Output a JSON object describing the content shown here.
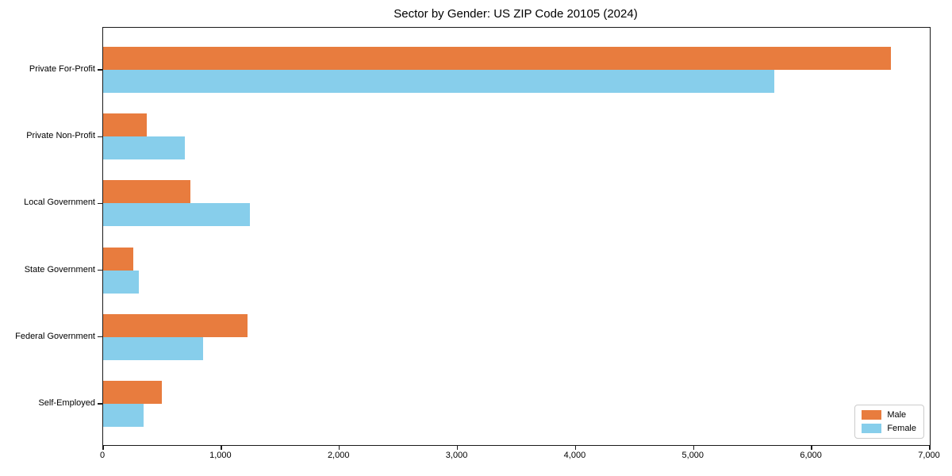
{
  "chart_data": {
    "type": "bar",
    "orientation": "horizontal",
    "title": "Sector by Gender: US ZIP Code 20105 (2024)",
    "categories": [
      "Private For-Profit",
      "Private Non-Profit",
      "Local Government",
      "State Government",
      "Federal Government",
      "Self-Employed"
    ],
    "series": [
      {
        "name": "Male",
        "color": "#E87C3E",
        "values": [
          6670,
          370,
          740,
          255,
          1220,
          500
        ]
      },
      {
        "name": "Female",
        "color": "#87CEEB",
        "values": [
          5680,
          690,
          1240,
          300,
          845,
          345
        ]
      }
    ],
    "xlabel": "",
    "ylabel": "",
    "xlim": [
      0,
      7000
    ],
    "x_ticks": [
      0,
      1000,
      2000,
      3000,
      4000,
      5000,
      6000,
      7000
    ],
    "x_tick_labels": [
      "0",
      "1,000",
      "2,000",
      "3,000",
      "4,000",
      "5,000",
      "6,000",
      "7,000"
    ],
    "grid": false,
    "legend_position": "lower right"
  }
}
